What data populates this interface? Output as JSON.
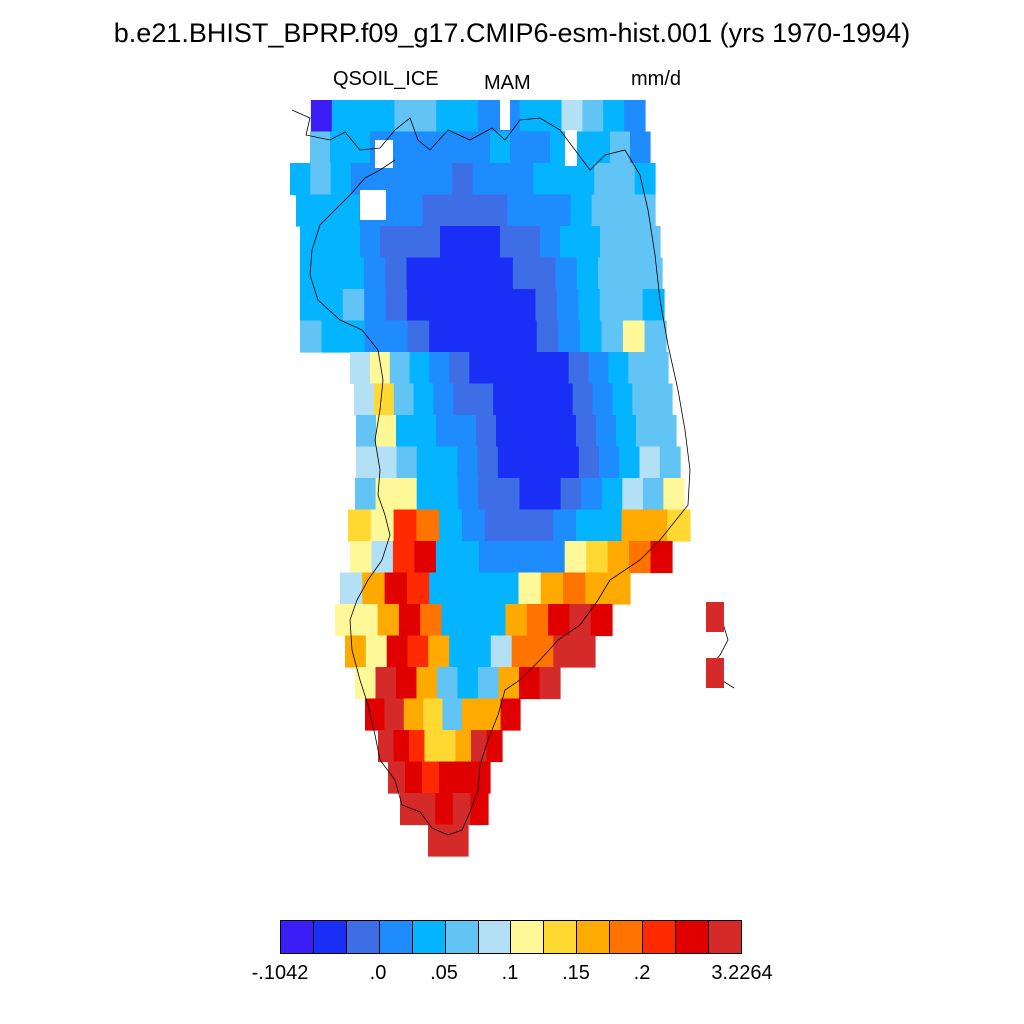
{
  "header": {
    "title": "b.e21.BHIST_BPRP.f09_g17.CMIP6-esm-hist.001 (yrs 1970-1994)",
    "variable": "QSOIL_ICE",
    "season": "MAM",
    "units": "mm/d"
  },
  "colorbar": {
    "colors": [
      "#3b1df5",
      "#1a2ff5",
      "#3d6ee6",
      "#1e8cff",
      "#04b4ff",
      "#62c3f5",
      "#b4e0f5",
      "#fff899",
      "#ffd932",
      "#ffaa00",
      "#ff7400",
      "#ff2a00",
      "#e00000",
      "#d42a2a"
    ],
    "tick_labels": [
      "-.1042",
      ".0",
      ".05",
      ".1",
      ".15",
      ".2",
      "3.2264"
    ]
  },
  "map": {
    "region": "Greenland",
    "coastline_color": "#000000",
    "grid_rows": [
      {
        "lat": 83,
        "cells": [
          0,
          0,
          4,
          4,
          4,
          5,
          5,
          4,
          4,
          3,
          3,
          4,
          4,
          6,
          5,
          4,
          3
        ]
      },
      {
        "lat": 82,
        "cells": [
          0,
          5,
          4,
          4,
          3,
          3,
          3,
          3,
          3,
          3,
          4,
          3,
          3,
          4,
          4,
          4,
          5,
          3
        ]
      },
      {
        "lat": 81,
        "cells": [
          4,
          5,
          4,
          3,
          3,
          3,
          3,
          3,
          2,
          3,
          3,
          3,
          4,
          4,
          4,
          5,
          5,
          4
        ]
      },
      {
        "lat": 80,
        "cells": [
          4,
          4,
          4,
          3,
          3,
          3,
          2,
          2,
          2,
          2,
          3,
          3,
          3,
          4,
          5,
          5,
          5
        ]
      },
      {
        "lat": 79,
        "cells": [
          4,
          4,
          4,
          3,
          2,
          2,
          2,
          1,
          1,
          1,
          2,
          2,
          3,
          4,
          4,
          5,
          5,
          5
        ]
      },
      {
        "lat": 78,
        "cells": [
          4,
          4,
          4,
          3,
          2,
          1,
          1,
          1,
          1,
          1,
          2,
          2,
          3,
          4,
          5,
          5,
          5
        ]
      },
      {
        "lat": 77,
        "cells": [
          4,
          4,
          5,
          3,
          2,
          1,
          1,
          1,
          1,
          1,
          1,
          2,
          3,
          4,
          5,
          5,
          4
        ]
      },
      {
        "lat": 76,
        "cells": [
          5,
          4,
          4,
          3,
          3,
          2,
          1,
          1,
          1,
          1,
          1,
          2,
          3,
          4,
          5,
          7,
          5
        ]
      },
      {
        "lat": 75,
        "cells": [
          6,
          7,
          5,
          4,
          3,
          2,
          1,
          1,
          1,
          1,
          1,
          2,
          3,
          4,
          5,
          5
        ]
      },
      {
        "lat": 74,
        "cells": [
          6,
          8,
          5,
          4,
          3,
          2,
          2,
          1,
          1,
          1,
          1,
          2,
          3,
          4,
          5,
          5
        ]
      },
      {
        "lat": 73,
        "cells": [
          5,
          7,
          4,
          4,
          3,
          3,
          2,
          1,
          1,
          1,
          1,
          2,
          3,
          4,
          5,
          5
        ]
      },
      {
        "lat": 72,
        "cells": [
          6,
          6,
          5,
          4,
          4,
          3,
          2,
          1,
          1,
          1,
          1,
          2,
          3,
          4,
          6,
          5
        ]
      },
      {
        "lat": 71,
        "cells": [
          5,
          7,
          7,
          4,
          4,
          3,
          2,
          2,
          1,
          1,
          2,
          3,
          4,
          6,
          5,
          7
        ]
      },
      {
        "lat": 70,
        "cells": [
          8,
          7,
          11,
          10,
          4,
          3,
          2,
          2,
          2,
          3,
          4,
          4,
          9,
          9,
          8
        ]
      },
      {
        "lat": 69,
        "cells": [
          7,
          6,
          11,
          12,
          4,
          4,
          3,
          3,
          3,
          3,
          7,
          8,
          9,
          10,
          12
        ]
      },
      {
        "lat": 68,
        "cells": [
          6,
          9,
          12,
          11,
          4,
          4,
          4,
          4,
          7,
          9,
          10,
          9,
          9
        ]
      },
      {
        "lat": 67,
        "cells": [
          7,
          7,
          9,
          12,
          10,
          4,
          4,
          4,
          9,
          10,
          12,
          13,
          12
        ]
      },
      {
        "lat": 66,
        "cells": [
          9,
          7,
          12,
          11,
          9,
          4,
          4,
          6,
          10,
          10,
          13,
          13
        ]
      },
      {
        "lat": 65,
        "cells": [
          7,
          13,
          12,
          9,
          5,
          4,
          5,
          9,
          12,
          13
        ]
      },
      {
        "lat": 64,
        "cells": [
          12,
          13,
          9,
          8,
          5,
          9,
          9,
          12
        ]
      },
      {
        "lat": 63,
        "cells": [
          13,
          12,
          11,
          8,
          8,
          9,
          13,
          12
        ]
      },
      {
        "lat": 62,
        "cells": [
          13,
          12,
          11,
          12,
          12,
          12
        ]
      },
      {
        "lat": 61,
        "cells": [
          13,
          13,
          12,
          13,
          12
        ]
      },
      {
        "lat": 60,
        "cells": [
          13,
          13
        ]
      }
    ]
  }
}
